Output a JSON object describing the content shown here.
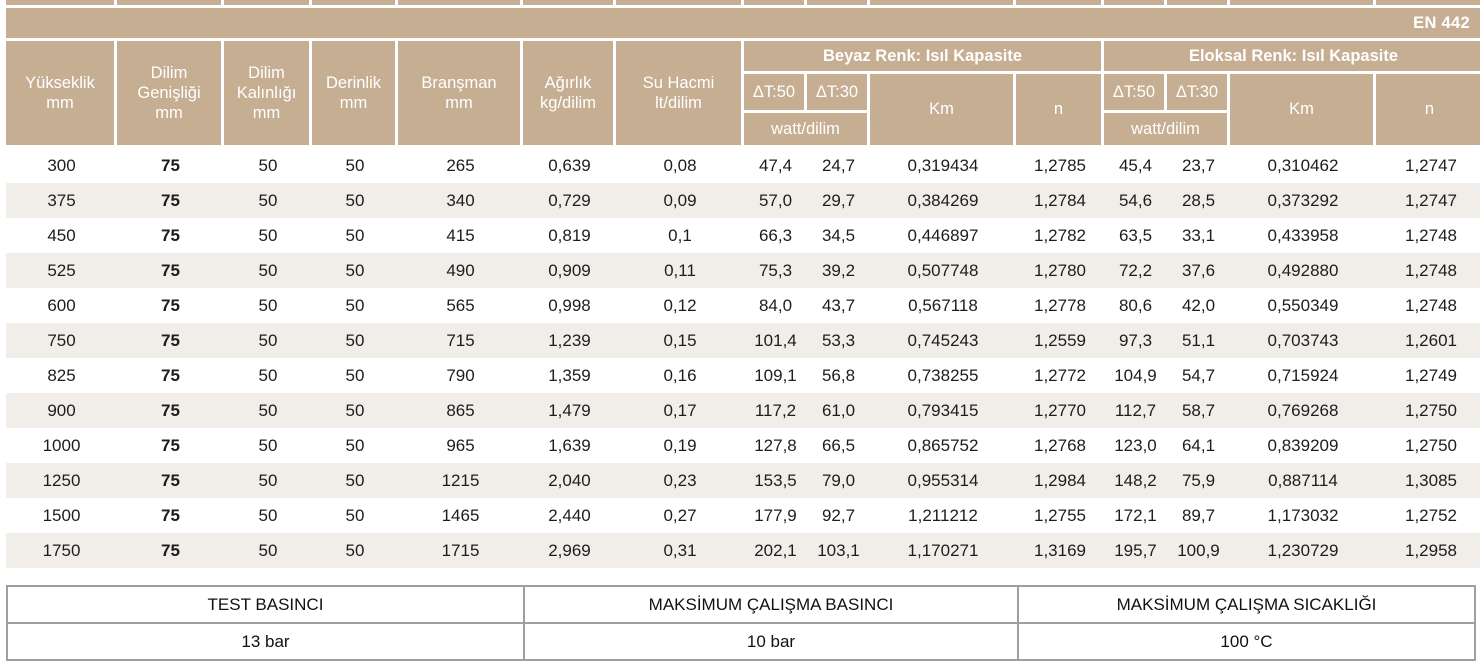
{
  "standard_badge": "EN 442",
  "colors": {
    "header_tan": "#c5ae92",
    "alt_row": "#f1eeea",
    "data_text": "#1d1d1b",
    "footer_border": "#9f9f9f"
  },
  "table": {
    "simple_columns": [
      "Yükseklik\nmm",
      "Dilim\nGenişliği\nmm",
      "Dilim\nKalınlığı\nmm",
      "Derinlik\nmm",
      "Branşman\nmm",
      "Ağırlık\nkg/dilim",
      "Su Hacmi\nlt/dilim"
    ],
    "groups": [
      {
        "label": "Beyaz Renk: Isıl Kapasite",
        "dt50": "ΔT:50",
        "dt30": "ΔT:30",
        "watt": "watt/dilim",
        "km": "Km",
        "n": "n"
      },
      {
        "label": "Eloksal Renk: Isıl Kapasite",
        "dt50": "ΔT:50",
        "dt30": "ΔT:30",
        "watt": "watt/dilim",
        "km": "Km",
        "n": "n"
      }
    ],
    "rows": [
      [
        "300",
        "75",
        "50",
        "50",
        "265",
        "0,639",
        "0,08",
        "47,4",
        "24,7",
        "0,319434",
        "1,2785",
        "45,4",
        "23,7",
        "0,310462",
        "1,2747"
      ],
      [
        "375",
        "75",
        "50",
        "50",
        "340",
        "0,729",
        "0,09",
        "57,0",
        "29,7",
        "0,384269",
        "1,2784",
        "54,6",
        "28,5",
        "0,373292",
        "1,2747"
      ],
      [
        "450",
        "75",
        "50",
        "50",
        "415",
        "0,819",
        "0,1",
        "66,3",
        "34,5",
        "0,446897",
        "1,2782",
        "63,5",
        "33,1",
        "0,433958",
        "1,2748"
      ],
      [
        "525",
        "75",
        "50",
        "50",
        "490",
        "0,909",
        "0,11",
        "75,3",
        "39,2",
        "0,507748",
        "1,2780",
        "72,2",
        "37,6",
        "0,492880",
        "1,2748"
      ],
      [
        "600",
        "75",
        "50",
        "50",
        "565",
        "0,998",
        "0,12",
        "84,0",
        "43,7",
        "0,567118",
        "1,2778",
        "80,6",
        "42,0",
        "0,550349",
        "1,2748"
      ],
      [
        "750",
        "75",
        "50",
        "50",
        "715",
        "1,239",
        "0,15",
        "101,4",
        "53,3",
        "0,745243",
        "1,2559",
        "97,3",
        "51,1",
        "0,703743",
        "1,2601"
      ],
      [
        "825",
        "75",
        "50",
        "50",
        "790",
        "1,359",
        "0,16",
        "109,1",
        "56,8",
        "0,738255",
        "1,2772",
        "104,9",
        "54,7",
        "0,715924",
        "1,2749"
      ],
      [
        "900",
        "75",
        "50",
        "50",
        "865",
        "1,479",
        "0,17",
        "117,2",
        "61,0",
        "0,793415",
        "1,2770",
        "112,7",
        "58,7",
        "0,769268",
        "1,2750"
      ],
      [
        "1000",
        "75",
        "50",
        "50",
        "965",
        "1,639",
        "0,19",
        "127,8",
        "66,5",
        "0,865752",
        "1,2768",
        "123,0",
        "64,1",
        "0,839209",
        "1,2750"
      ],
      [
        "1250",
        "75",
        "50",
        "50",
        "1215",
        "2,040",
        "0,23",
        "153,5",
        "79,0",
        "0,955314",
        "1,2984",
        "148,2",
        "75,9",
        "0,887114",
        "1,3085"
      ],
      [
        "1500",
        "75",
        "50",
        "50",
        "1465",
        "2,440",
        "0,27",
        "177,9",
        "92,7",
        "1,211212",
        "1,2755",
        "172,1",
        "89,7",
        "1,173032",
        "1,2752"
      ],
      [
        "1750",
        "75",
        "50",
        "50",
        "1715",
        "2,969",
        "0,31",
        "202,1",
        "103,1",
        "1,170271",
        "1,3169",
        "195,7",
        "100,9",
        "1,230729",
        "1,2958"
      ]
    ]
  },
  "footer": {
    "cells": [
      {
        "label": "TEST BASINCI",
        "value": "13 bar"
      },
      {
        "label": "MAKSİMUM ÇALIŞMA BASINCI",
        "value": "10 bar"
      },
      {
        "label": "MAKSİMUM ÇALIŞMA SICAKLIĞI",
        "value": "100 °C"
      }
    ]
  }
}
